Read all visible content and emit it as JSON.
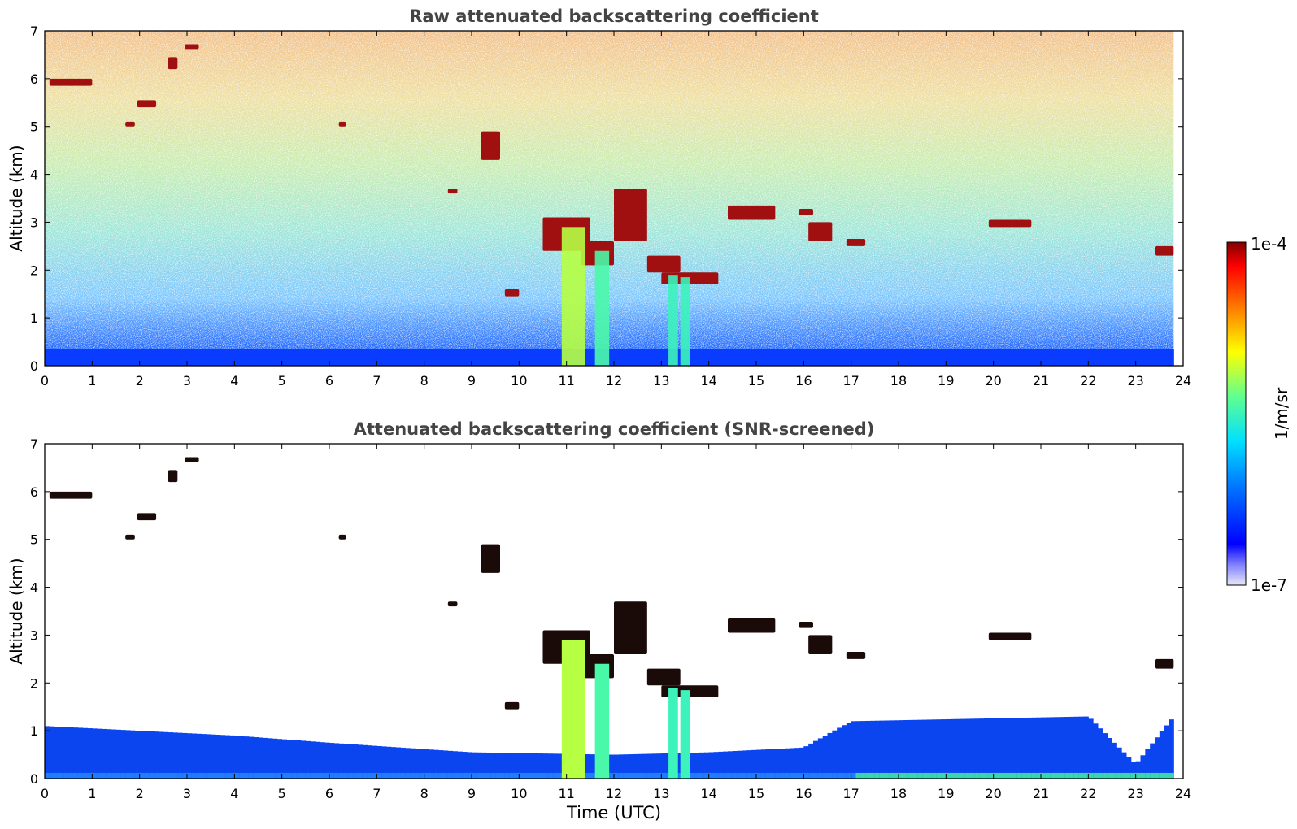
{
  "chart_data": [
    {
      "type": "heatmap",
      "title": "Raw attenuated backscattering coefficient",
      "xlabel": "",
      "ylabel": "Altitude (km)",
      "xlim": [
        0,
        24
      ],
      "ylim": [
        0,
        7
      ],
      "xticks": [
        0,
        1,
        2,
        3,
        4,
        5,
        6,
        7,
        8,
        9,
        10,
        11,
        12,
        13,
        14,
        15,
        16,
        17,
        18,
        19,
        20,
        21,
        22,
        23,
        24
      ],
      "yticks": [
        0,
        1,
        2,
        3,
        4,
        5,
        6,
        7
      ],
      "grid": false,
      "data_end_hour": 23.8,
      "clouds": [
        {
          "x": [
            0.1,
            1.0
          ],
          "y": [
            5.85,
            6.0
          ]
        },
        {
          "x": [
            2.6,
            2.8
          ],
          "y": [
            6.2,
            6.45
          ]
        },
        {
          "x": [
            2.95,
            3.25
          ],
          "y": [
            6.62,
            6.72
          ]
        },
        {
          "x": [
            1.95,
            2.35
          ],
          "y": [
            5.4,
            5.55
          ]
        },
        {
          "x": [
            1.7,
            1.9
          ],
          "y": [
            5.0,
            5.1
          ]
        },
        {
          "x": [
            6.2,
            6.35
          ],
          "y": [
            5.0,
            5.1
          ]
        },
        {
          "x": [
            9.2,
            9.6
          ],
          "y": [
            4.3,
            4.9
          ]
        },
        {
          "x": [
            8.5,
            8.7
          ],
          "y": [
            3.6,
            3.7
          ]
        },
        {
          "x": [
            10.5,
            11.5
          ],
          "y": [
            2.4,
            3.1
          ]
        },
        {
          "x": [
            11.3,
            12.0
          ],
          "y": [
            2.1,
            2.6
          ]
        },
        {
          "x": [
            12.0,
            12.7
          ],
          "y": [
            2.6,
            3.7
          ]
        },
        {
          "x": [
            12.7,
            13.4
          ],
          "y": [
            1.95,
            2.3
          ]
        },
        {
          "x": [
            13.0,
            14.2
          ],
          "y": [
            1.7,
            1.95
          ]
        },
        {
          "x": [
            14.4,
            15.4
          ],
          "y": [
            3.05,
            3.35
          ]
        },
        {
          "x": [
            15.9,
            16.2
          ],
          "y": [
            3.15,
            3.28
          ]
        },
        {
          "x": [
            16.1,
            16.6
          ],
          "y": [
            2.6,
            3.0
          ]
        },
        {
          "x": [
            16.9,
            17.3
          ],
          "y": [
            2.5,
            2.65
          ]
        },
        {
          "x": [
            19.9,
            20.8
          ],
          "y": [
            2.9,
            3.05
          ]
        },
        {
          "x": [
            23.4,
            23.8
          ],
          "y": [
            2.3,
            2.5
          ]
        },
        {
          "x": [
            9.7,
            10.0
          ],
          "y": [
            1.45,
            1.6
          ]
        }
      ],
      "columns": [
        {
          "x": [
            10.9,
            11.4
          ],
          "y": [
            0,
            2.9
          ],
          "level": 0.62
        },
        {
          "x": [
            11.6,
            11.9
          ],
          "y": [
            0,
            2.4
          ],
          "level": 0.52
        },
        {
          "x": [
            13.15,
            13.35
          ],
          "y": [
            0,
            1.9
          ],
          "level": 0.5
        },
        {
          "x": [
            13.4,
            13.6
          ],
          "y": [
            0,
            1.85
          ],
          "level": 0.5
        }
      ],
      "boundary_layer_top_km": [
        {
          "hour": 0,
          "km": 1.1
        },
        {
          "hour": 4,
          "km": 0.9
        },
        {
          "hour": 6,
          "km": 0.75
        },
        {
          "hour": 9,
          "km": 0.55
        },
        {
          "hour": 12,
          "km": 0.5
        },
        {
          "hour": 14,
          "km": 0.55
        },
        {
          "hour": 16,
          "km": 0.65
        },
        {
          "hour": 17,
          "km": 1.2
        },
        {
          "hour": 22,
          "km": 1.3
        },
        {
          "hour": 23,
          "km": 0.3
        },
        {
          "hour": 23.8,
          "km": 1.3
        }
      ]
    },
    {
      "type": "heatmap",
      "title": "Attenuated backscattering coefficient (SNR-screened)",
      "xlabel": "Time (UTC)",
      "ylabel": "Altitude (km)",
      "xlim": [
        0,
        24
      ],
      "ylim": [
        0,
        7
      ],
      "xticks": [
        0,
        1,
        2,
        3,
        4,
        5,
        6,
        7,
        8,
        9,
        10,
        11,
        12,
        13,
        14,
        15,
        16,
        17,
        18,
        19,
        20,
        21,
        22,
        23,
        24
      ],
      "yticks": [
        0,
        1,
        2,
        3,
        4,
        5,
        6,
        7
      ],
      "grid": false,
      "data_end_hour": 23.8
    }
  ],
  "colorbar": {
    "label": "1/m/sr",
    "max_label": "1e-4",
    "min_label": "1e-7",
    "scale": "log",
    "range": [
      1e-07,
      0.0001
    ],
    "colormap": "jet",
    "position": "right"
  },
  "colors": {
    "title": "#444444",
    "axis": "#000000",
    "background": "#ffffff"
  }
}
